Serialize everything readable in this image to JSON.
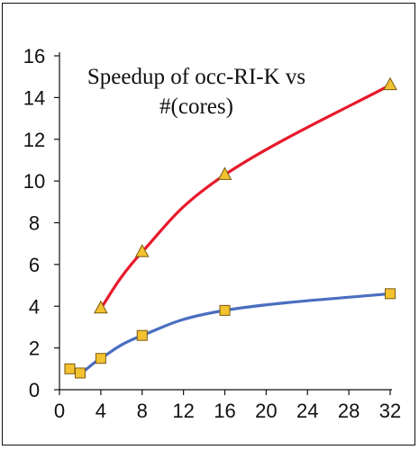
{
  "chart_data": {
    "type": "line",
    "title_lines": [
      "Speedup of occ-RI-K vs",
      "#(cores)"
    ],
    "xlabel": "",
    "ylabel": "",
    "x_ticks": [
      0,
      4,
      8,
      12,
      16,
      20,
      24,
      28,
      32
    ],
    "y_ticks": [
      0,
      2,
      4,
      6,
      8,
      10,
      12,
      14,
      16
    ],
    "xlim": [
      0,
      32
    ],
    "ylim": [
      0,
      16
    ],
    "grid": false,
    "series": [
      {
        "color": "#e8192c",
        "marker": "triangle",
        "marker_fill": "#f2c230",
        "x": [
          4,
          8,
          16,
          32
        ],
        "y": [
          3.9,
          6.6,
          10.3,
          14.6
        ]
      },
      {
        "color": "#4a6ec0",
        "marker": "square",
        "marker_fill": "#f2c230",
        "x": [
          1,
          2,
          4,
          8,
          16,
          32
        ],
        "y": [
          1.0,
          0.8,
          1.5,
          2.6,
          3.8,
          4.6
        ]
      }
    ]
  }
}
